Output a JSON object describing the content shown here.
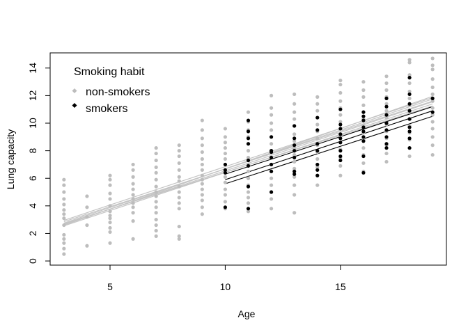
{
  "chart_data": {
    "type": "scatter",
    "title": "",
    "xlabel": "Age",
    "ylabel": "Lung capacity",
    "xlim": [
      2.4,
      19.6
    ],
    "ylim": [
      -0.3,
      15.1
    ],
    "x_ticks": [
      5,
      10,
      15
    ],
    "y_ticks": [
      0,
      2,
      4,
      6,
      8,
      10,
      12,
      14
    ],
    "grid": false,
    "legend": {
      "title": "Smoking habit",
      "placement": "top-left",
      "entries": [
        {
          "label": "non-smokers",
          "color": "#bdbdbd"
        },
        {
          "label": "smokers",
          "color": "#000000"
        }
      ]
    },
    "series": [
      {
        "name": "non-smokers",
        "color": "#bdbdbd",
        "points": [
          [
            3,
            0.5
          ],
          [
            3,
            0.9
          ],
          [
            3,
            1.3
          ],
          [
            3,
            1.6
          ],
          [
            3,
            1.9
          ],
          [
            3,
            2.6
          ],
          [
            3,
            3.1
          ],
          [
            3,
            3.4
          ],
          [
            3,
            3.7
          ],
          [
            3,
            4.1
          ],
          [
            3,
            4.5
          ],
          [
            3,
            5.0
          ],
          [
            3,
            5.5
          ],
          [
            3,
            5.9
          ],
          [
            4,
            1.1
          ],
          [
            4,
            2.6
          ],
          [
            4,
            3.2
          ],
          [
            4,
            3.9
          ],
          [
            4,
            4.7
          ],
          [
            5,
            1.3
          ],
          [
            5,
            2.1
          ],
          [
            5,
            2.4
          ],
          [
            5,
            2.8
          ],
          [
            5,
            3.1
          ],
          [
            5,
            3.3
          ],
          [
            5,
            3.6
          ],
          [
            5,
            4.0
          ],
          [
            5,
            4.5
          ],
          [
            5,
            4.9
          ],
          [
            5,
            5.5
          ],
          [
            5,
            5.9
          ],
          [
            5,
            6.2
          ],
          [
            6,
            1.6
          ],
          [
            6,
            2.9
          ],
          [
            6,
            3.5
          ],
          [
            6,
            3.9
          ],
          [
            6,
            4.2
          ],
          [
            6,
            4.5
          ],
          [
            6,
            4.8
          ],
          [
            6,
            5.2
          ],
          [
            6,
            5.6
          ],
          [
            6,
            6.1
          ],
          [
            6,
            6.6
          ],
          [
            6,
            7.0
          ],
          [
            7,
            1.8
          ],
          [
            7,
            2.2
          ],
          [
            7,
            2.6
          ],
          [
            7,
            3.0
          ],
          [
            7,
            3.5
          ],
          [
            7,
            3.9
          ],
          [
            7,
            4.3
          ],
          [
            7,
            4.7
          ],
          [
            7,
            5.0
          ],
          [
            7,
            5.4
          ],
          [
            7,
            5.9
          ],
          [
            7,
            6.4
          ],
          [
            7,
            6.8
          ],
          [
            7,
            7.3
          ],
          [
            7,
            7.8
          ],
          [
            7,
            8.2
          ],
          [
            8,
            1.6
          ],
          [
            8,
            1.8
          ],
          [
            8,
            2.5
          ],
          [
            8,
            3.8
          ],
          [
            8,
            4.2
          ],
          [
            8,
            4.6
          ],
          [
            8,
            5.0
          ],
          [
            8,
            5.4
          ],
          [
            8,
            5.8
          ],
          [
            8,
            6.1
          ],
          [
            8,
            6.6
          ],
          [
            8,
            7.1
          ],
          [
            8,
            7.6
          ],
          [
            8,
            8.0
          ],
          [
            8,
            8.4
          ],
          [
            9,
            3.4
          ],
          [
            9,
            3.9
          ],
          [
            9,
            4.4
          ],
          [
            9,
            4.8
          ],
          [
            9,
            5.2
          ],
          [
            9,
            5.6
          ],
          [
            9,
            5.9
          ],
          [
            9,
            6.2
          ],
          [
            9,
            6.6
          ],
          [
            9,
            7.0
          ],
          [
            9,
            7.4
          ],
          [
            9,
            7.9
          ],
          [
            9,
            8.4
          ],
          [
            9,
            8.9
          ],
          [
            9,
            9.5
          ],
          [
            9,
            10.2
          ],
          [
            10,
            3.8
          ],
          [
            10,
            4.3
          ],
          [
            10,
            4.8
          ],
          [
            10,
            5.2
          ],
          [
            10,
            5.7
          ],
          [
            10,
            6.1
          ],
          [
            10,
            6.5
          ],
          [
            10,
            7.0
          ],
          [
            10,
            7.4
          ],
          [
            10,
            7.8
          ],
          [
            10,
            8.2
          ],
          [
            10,
            8.6
          ],
          [
            10,
            9.0
          ],
          [
            10,
            9.6
          ],
          [
            11,
            3.6
          ],
          [
            11,
            4.2
          ],
          [
            11,
            4.6
          ],
          [
            11,
            5.0
          ],
          [
            11,
            5.5
          ],
          [
            11,
            6.0
          ],
          [
            11,
            6.5
          ],
          [
            11,
            7.0
          ],
          [
            11,
            7.5
          ],
          [
            11,
            8.0
          ],
          [
            11,
            8.5
          ],
          [
            11,
            9.0
          ],
          [
            11,
            9.5
          ],
          [
            11,
            10.1
          ],
          [
            11,
            10.8
          ],
          [
            12,
            3.8
          ],
          [
            12,
            4.5
          ],
          [
            12,
            5.0
          ],
          [
            12,
            5.5
          ],
          [
            12,
            6.0
          ],
          [
            12,
            6.5
          ],
          [
            12,
            7.0
          ],
          [
            12,
            7.5
          ],
          [
            12,
            8.0
          ],
          [
            12,
            8.5
          ],
          [
            12,
            9.0
          ],
          [
            12,
            9.5
          ],
          [
            12,
            10.0
          ],
          [
            12,
            10.6
          ],
          [
            12,
            11.1
          ],
          [
            12,
            12.0
          ],
          [
            13,
            3.5
          ],
          [
            13,
            4.8
          ],
          [
            13,
            5.5
          ],
          [
            13,
            6.1
          ],
          [
            13,
            6.7
          ],
          [
            13,
            7.2
          ],
          [
            13,
            7.7
          ],
          [
            13,
            8.2
          ],
          [
            13,
            8.7
          ],
          [
            13,
            9.2
          ],
          [
            13,
            9.8
          ],
          [
            13,
            10.3
          ],
          [
            13,
            10.8
          ],
          [
            13,
            11.4
          ],
          [
            13,
            12.1
          ],
          [
            14,
            5.5
          ],
          [
            14,
            6.2
          ],
          [
            14,
            6.8
          ],
          [
            14,
            7.4
          ],
          [
            14,
            7.9
          ],
          [
            14,
            8.4
          ],
          [
            14,
            8.9
          ],
          [
            14,
            9.4
          ],
          [
            14,
            9.9
          ],
          [
            14,
            10.4
          ],
          [
            14,
            10.9
          ],
          [
            14,
            11.4
          ],
          [
            14,
            11.9
          ],
          [
            15,
            6.2
          ],
          [
            15,
            6.9
          ],
          [
            15,
            7.5
          ],
          [
            15,
            8.1
          ],
          [
            15,
            8.6
          ],
          [
            15,
            9.1
          ],
          [
            15,
            9.6
          ],
          [
            15,
            10.1
          ],
          [
            15,
            10.6
          ],
          [
            15,
            11.1
          ],
          [
            15,
            11.6
          ],
          [
            15,
            12.2
          ],
          [
            15,
            12.8
          ],
          [
            15,
            13.1
          ],
          [
            16,
            6.5
          ],
          [
            16,
            7.1
          ],
          [
            16,
            7.7
          ],
          [
            16,
            8.2
          ],
          [
            16,
            8.8
          ],
          [
            16,
            9.3
          ],
          [
            16,
            9.8
          ],
          [
            16,
            10.3
          ],
          [
            16,
            10.8
          ],
          [
            16,
            11.3
          ],
          [
            16,
            11.9
          ],
          [
            16,
            12.4
          ],
          [
            16,
            13.0
          ],
          [
            17,
            7.2
          ],
          [
            17,
            7.8
          ],
          [
            17,
            8.4
          ],
          [
            17,
            8.9
          ],
          [
            17,
            9.4
          ],
          [
            17,
            9.9
          ],
          [
            17,
            10.4
          ],
          [
            17,
            10.9
          ],
          [
            17,
            11.4
          ],
          [
            17,
            11.9
          ],
          [
            17,
            12.4
          ],
          [
            17,
            12.9
          ],
          [
            17,
            13.4
          ],
          [
            18,
            7.6
          ],
          [
            18,
            8.2
          ],
          [
            18,
            8.8
          ],
          [
            18,
            9.3
          ],
          [
            18,
            9.8
          ],
          [
            18,
            10.3
          ],
          [
            18,
            10.8
          ],
          [
            18,
            11.3
          ],
          [
            18,
            11.8
          ],
          [
            18,
            12.3
          ],
          [
            18,
            12.9
          ],
          [
            18,
            13.5
          ],
          [
            18,
            14.4
          ],
          [
            18,
            14.6
          ],
          [
            19,
            7.7
          ],
          [
            19,
            8.4
          ],
          [
            19,
            9.0
          ],
          [
            19,
            9.6
          ],
          [
            19,
            10.1
          ],
          [
            19,
            10.6
          ],
          [
            19,
            11.1
          ],
          [
            19,
            11.6
          ],
          [
            19,
            12.1
          ],
          [
            19,
            12.6
          ],
          [
            19,
            13.2
          ],
          [
            19,
            13.9
          ],
          [
            19,
            14.2
          ],
          [
            19,
            14.7
          ]
        ],
        "fit_lines": [
          [
            [
              3,
              2.65
            ],
            [
              19,
              11.55
            ]
          ],
          [
            [
              3,
              2.75
            ],
            [
              19,
              11.75
            ]
          ],
          [
            [
              3,
              2.85
            ],
            [
              19,
              11.6
            ]
          ],
          [
            [
              3,
              2.55
            ],
            [
              19,
              11.4
            ]
          ],
          [
            [
              3,
              2.95
            ],
            [
              19,
              11.85
            ]
          ],
          [
            [
              3,
              2.7
            ],
            [
              19,
              11.25
            ]
          ],
          [
            [
              3,
              2.6
            ],
            [
              19,
              11.95
            ]
          ]
        ]
      },
      {
        "name": "smokers",
        "color": "#000000",
        "points": [
          [
            10,
            3.9
          ],
          [
            10,
            6.4
          ],
          [
            10,
            6.6
          ],
          [
            10,
            7.0
          ],
          [
            11,
            3.8
          ],
          [
            11,
            5.4
          ],
          [
            11,
            6.9
          ],
          [
            11,
            7.3
          ],
          [
            11,
            8.5
          ],
          [
            11,
            8.9
          ],
          [
            11,
            9.4
          ],
          [
            11,
            10.2
          ],
          [
            12,
            5.0
          ],
          [
            12,
            6.5
          ],
          [
            12,
            7.0
          ],
          [
            12,
            7.5
          ],
          [
            12,
            7.9
          ],
          [
            12,
            8.0
          ],
          [
            12,
            9.0
          ],
          [
            13,
            6.3
          ],
          [
            13,
            6.5
          ],
          [
            13,
            7.5
          ],
          [
            13,
            8.0
          ],
          [
            13,
            8.4
          ],
          [
            13,
            8.9
          ],
          [
            13,
            9.8
          ],
          [
            14,
            6.2
          ],
          [
            14,
            6.6
          ],
          [
            14,
            7.0
          ],
          [
            14,
            8.0
          ],
          [
            14,
            8.5
          ],
          [
            14,
            9.5
          ],
          [
            14,
            10.4
          ],
          [
            15,
            7.3
          ],
          [
            15,
            7.6
          ],
          [
            15,
            8.0
          ],
          [
            15,
            8.6
          ],
          [
            15,
            8.9
          ],
          [
            15,
            9.2
          ],
          [
            15,
            9.6
          ],
          [
            15,
            9.9
          ],
          [
            15,
            11.0
          ],
          [
            16,
            6.4
          ],
          [
            16,
            7.6
          ],
          [
            16,
            8.7
          ],
          [
            16,
            9.0
          ],
          [
            16,
            9.4
          ],
          [
            16,
            9.7
          ],
          [
            16,
            10.2
          ],
          [
            16,
            10.5
          ],
          [
            16,
            10.8
          ],
          [
            17,
            8.2
          ],
          [
            17,
            8.5
          ],
          [
            17,
            9.0
          ],
          [
            17,
            9.5
          ],
          [
            17,
            10.0
          ],
          [
            17,
            10.6
          ],
          [
            17,
            11.2
          ],
          [
            17,
            11.8
          ],
          [
            18,
            8.2
          ],
          [
            18,
            8.9
          ],
          [
            18,
            9.4
          ],
          [
            18,
            9.7
          ],
          [
            18,
            10.3
          ],
          [
            18,
            10.9
          ],
          [
            18,
            11.4
          ],
          [
            18,
            12.1
          ],
          [
            18,
            13.3
          ],
          [
            19,
            10.8
          ],
          [
            19,
            11.8
          ]
        ],
        "fit_lines": [
          [
            [
              10,
              5.9
            ],
            [
              19,
              10.9
            ]
          ],
          [
            [
              10,
              5.6
            ],
            [
              19,
              10.5
            ]
          ],
          [
            [
              10,
              6.3
            ],
            [
              19,
              11.2
            ]
          ]
        ]
      }
    ]
  }
}
